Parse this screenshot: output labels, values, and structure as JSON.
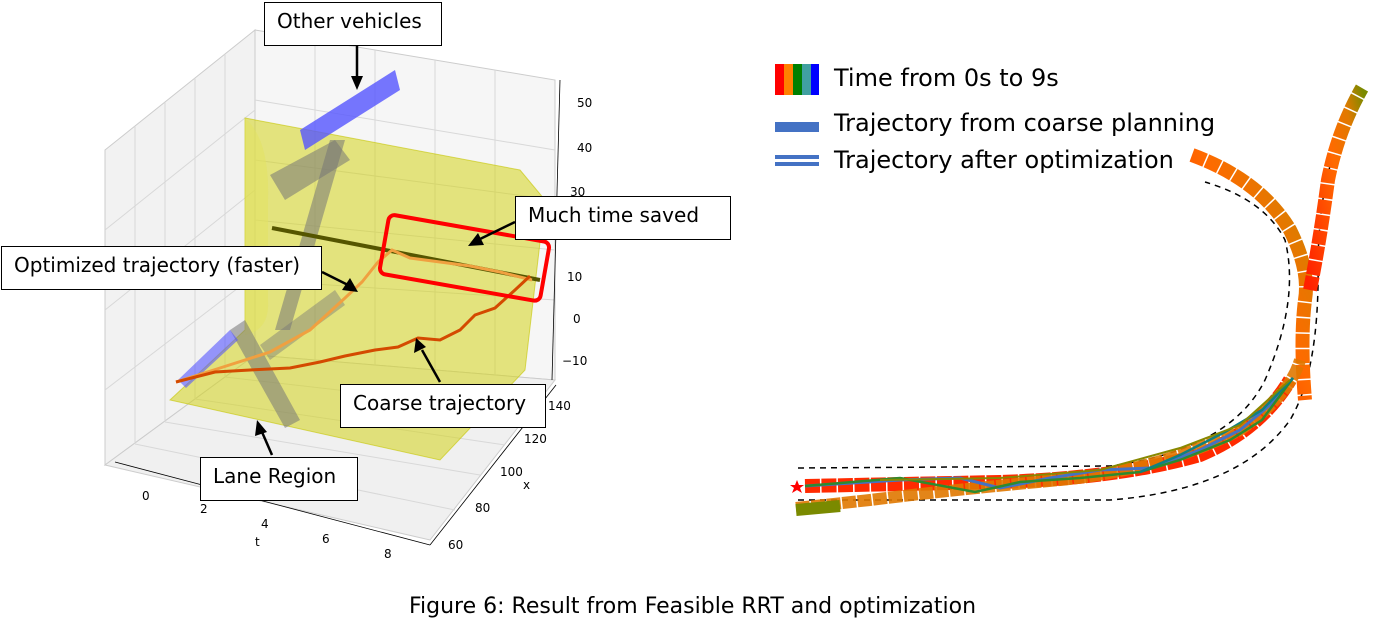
{
  "callouts": {
    "other_vehicles": "Other vehicles",
    "much_time_saved": "Much time saved",
    "optimized": "Optimized trajectory (faster)",
    "coarse": "Coarse trajectory",
    "lane_region": "Lane Region"
  },
  "axes": {
    "t_label": "t",
    "x_label": "x",
    "t_ticks": [
      "0",
      "2",
      "4",
      "6",
      "8"
    ],
    "x_ticks": [
      "60",
      "80",
      "100",
      "120",
      "140"
    ],
    "z_ticks": [
      "50",
      "40",
      "30",
      "20",
      "10",
      "0",
      "−10"
    ]
  },
  "legend": {
    "time_label": "Time from 0s to 9s",
    "coarse_label": "Trajectory from coarse planning",
    "optimized_label": "Trajectory after optimization",
    "time_colors": [
      "#ff0000",
      "#ff8000",
      "#008000",
      "#40a0a0",
      "#0000ff"
    ],
    "coarse_color": "#4472c4",
    "optimized_color": "#4472c4"
  },
  "colors": {
    "lane": "#d4d419",
    "vehicle_blue": "#5555ff",
    "vehicle_gray": "#777777",
    "coarse_line": "#d44a00",
    "optimized_line": "#f0a040",
    "saved_line": "#555500",
    "highlight_box": "#ff0000"
  },
  "caption": "Figure 6: Result from Feasible RRT and optimization"
}
